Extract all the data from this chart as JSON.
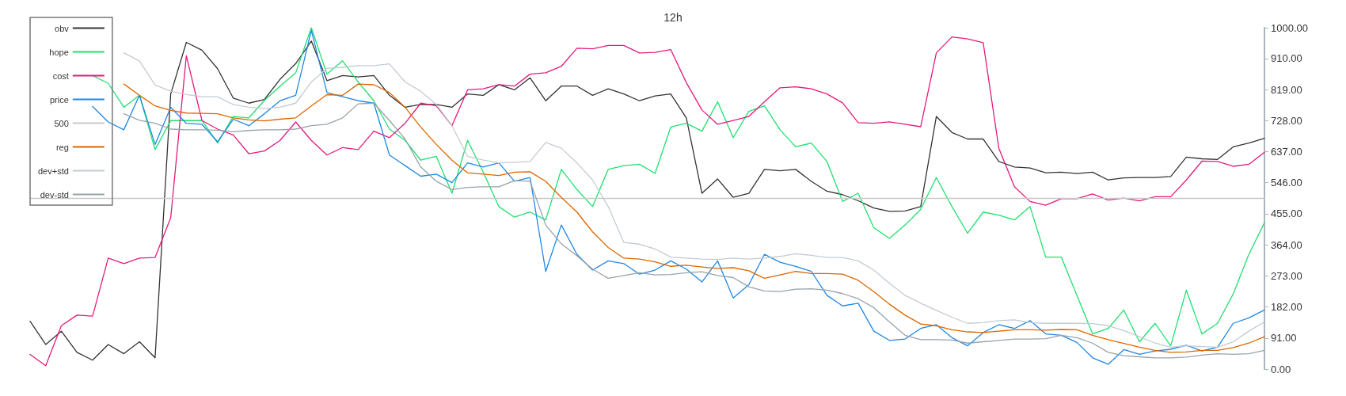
{
  "chart_data": {
    "type": "line",
    "title": "12h",
    "categories": [
      null,
      null,
      null,
      null,
      null,
      null,
      null,
      null,
      null,
      null,
      null,
      null,
      null,
      null,
      null,
      null,
      null,
      null,
      null,
      null,
      null,
      null,
      null,
      null,
      null,
      null,
      null,
      null,
      null,
      null,
      null,
      null,
      null,
      null,
      null,
      null,
      null,
      null,
      null,
      null,
      null,
      null,
      null,
      null,
      null,
      null,
      null,
      null,
      null,
      null,
      null,
      null,
      null,
      null,
      null,
      null,
      null,
      null,
      null,
      null,
      null,
      null,
      null,
      null,
      null,
      null,
      null,
      null,
      null,
      null,
      null,
      null,
      null,
      null,
      null,
      null,
      null,
      null,
      null,
      null
    ],
    "series": [
      {
        "name": "obv",
        "color": "#333333",
        "values": [
          140,
          72,
          111,
          49,
          26,
          72,
          45,
          80,
          33,
          806,
          957,
          934,
          880,
          794,
          779,
          790,
          849,
          895,
          961,
          845,
          860,
          856,
          860,
          802,
          767,
          775,
          775,
          767,
          806,
          802,
          833,
          818,
          853,
          786,
          829,
          829,
          802,
          821,
          806,
          786,
          800,
          806,
          736,
          515,
          557,
          503,
          515,
          585,
          581,
          585,
          550,
          521,
          511,
          493,
          472,
          462,
          463,
          476,
          740,
          693,
          674,
          674,
          608,
          592,
          589,
          575,
          577,
          573,
          577,
          554,
          560,
          561,
          561,
          564,
          621,
          616,
          614,
          651,
          662,
          676
        ]
      },
      {
        "name": "hope",
        "color": "#1ee070",
        "values": [
          null,
          null,
          null,
          null,
          860,
          837,
          767,
          802,
          643,
          728,
          728,
          728,
          662,
          740,
          736,
          787,
          829,
          868,
          1000,
          864,
          903,
          841,
          786,
          703,
          670,
          612,
          623,
          515,
          670,
          577,
          476,
          445,
          460,
          437,
          585,
          526,
          476,
          585,
          596,
          600,
          573,
          709,
          720,
          697,
          783,
          678,
          755,
          771,
          701,
          651,
          662,
          608,
          491,
          515,
          414,
          383,
          422,
          468,
          561,
          476,
          398,
          460,
          451,
          437,
          476,
          328,
          328,
          216,
          103,
          119,
          173,
          80,
          134,
          68,
          231,
          103,
          134,
          220,
          336,
          429
        ]
      },
      {
        "name": "cost",
        "color": "#e6197d",
        "values": [
          43,
          10,
          127,
          158,
          155,
          325,
          309,
          325,
          327,
          443,
          918,
          728,
          703,
          686,
          631,
          639,
          670,
          724,
          670,
          627,
          649,
          643,
          697,
          678,
          720,
          779,
          771,
          713,
          818,
          821,
          833,
          829,
          864,
          868,
          887,
          940,
          938,
          948,
          948,
          926,
          928,
          936,
          839,
          759,
          717,
          728,
          740,
          783,
          824,
          827,
          821,
          806,
          780,
          722,
          720,
          724,
          717,
          710,
          926,
          973,
          967,
          956,
          647,
          534,
          491,
          480,
          499,
          499,
          513,
          495,
          501,
          493,
          505,
          505,
          554,
          609,
          608,
          594,
          600,
          635
        ]
      },
      {
        "name": "price",
        "color": "#1e88e5",
        "values": [
          null,
          null,
          null,
          null,
          769,
          724,
          701,
          802,
          658,
          767,
          720,
          717,
          666,
          732,
          713,
          748,
          786,
          802,
          992,
          810,
          798,
          786,
          779,
          627,
          596,
          565,
          571,
          546,
          604,
          592,
          604,
          550,
          561,
          286,
          422,
          336,
          290,
          317,
          309,
          278,
          290,
          317,
          293,
          255,
          317,
          208,
          247,
          336,
          313,
          301,
          286,
          216,
          185,
          193,
          111,
          84,
          88,
          119,
          130,
          92,
          68,
          107,
          130,
          119,
          142,
          103,
          99,
          78,
          33,
          14,
          57,
          43,
          53,
          58,
          70,
          53,
          64,
          134,
          150,
          173
        ]
      },
      {
        "name": "500",
        "color": "#c8c8c8",
        "values": [
          500,
          500,
          500,
          500,
          500,
          500,
          500,
          500,
          500,
          500,
          500,
          500,
          500,
          500,
          500,
          500,
          500,
          500,
          500,
          500,
          500,
          500,
          500,
          500,
          500,
          500,
          500,
          500,
          500,
          500,
          500,
          500,
          500,
          500,
          500,
          500,
          500,
          500,
          500,
          500,
          500,
          500,
          500,
          500,
          500,
          500,
          500,
          500,
          500,
          500,
          500,
          500,
          500,
          500,
          500,
          500,
          500,
          500,
          500,
          500,
          500,
          500,
          500,
          500,
          500,
          500,
          500,
          500,
          500,
          500,
          500,
          500,
          500,
          500,
          500,
          500,
          500,
          500,
          500,
          500
        ]
      },
      {
        "name": "reg",
        "color": "#dd6600",
        "values": [
          null,
          null,
          null,
          null,
          null,
          null,
          835,
          802,
          771,
          758,
          750,
          749,
          748,
          736,
          730,
          727,
          732,
          736,
          771,
          804,
          802,
          835,
          833,
          810,
          767,
          709,
          658,
          612,
          575,
          571,
          567,
          577,
          578,
          550,
          503,
          460,
          402,
          356,
          325,
          322,
          314,
          301,
          304,
          299,
          295,
          297,
          288,
          266,
          276,
          286,
          280,
          280,
          278,
          260,
          227,
          190,
          158,
          132,
          127,
          115,
          109,
          107,
          111,
          115,
          115,
          114,
          116,
          115,
          99,
          86,
          75,
          64,
          55,
          49,
          50,
          55,
          55,
          63,
          76,
          95
        ]
      },
      {
        "name": "dev+std",
        "color": "#c4cbd2",
        "values": [
          null,
          null,
          null,
          null,
          null,
          null,
          926,
          903,
          832,
          814,
          804,
          798,
          798,
          775,
          767,
          763,
          767,
          779,
          841,
          881,
          884,
          889,
          889,
          894,
          841,
          814,
          775,
          713,
          623,
          612,
          604,
          606,
          608,
          664,
          647,
          604,
          554,
          476,
          371,
          366,
          352,
          328,
          325,
          322,
          321,
          325,
          322,
          325,
          330,
          338,
          333,
          327,
          327,
          317,
          290,
          251,
          216,
          193,
          172,
          152,
          134,
          136,
          142,
          144,
          136,
          134,
          134,
          134,
          133,
          127,
          113,
          95,
          76,
          64,
          68,
          66,
          64,
          80,
          111,
          138
        ]
      },
      {
        "name": "dev-std",
        "color": "#98a3ab",
        "values": [
          null,
          null,
          null,
          null,
          null,
          null,
          748,
          729,
          720,
          703,
          701,
          701,
          700,
          695,
          699,
          701,
          701,
          703,
          713,
          717,
          736,
          777,
          779,
          728,
          674,
          592,
          550,
          526,
          532,
          534,
          534,
          552,
          550,
          422,
          367,
          332,
          293,
          266,
          274,
          282,
          276,
          277,
          282,
          285,
          274,
          268,
          241,
          229,
          227,
          234,
          235,
          231,
          221,
          206,
          180,
          138,
          99,
          86,
          86,
          85,
          76,
          80,
          84,
          88,
          88,
          89,
          99,
          92,
          76,
          49,
          39,
          36,
          33,
          33,
          35,
          41,
          45,
          43,
          45,
          55
        ]
      }
    ],
    "ylim": [
      0,
      1000
    ],
    "yticks": [
      {
        "value": 0,
        "label": "0.00"
      },
      {
        "value": 91,
        "label": "91.00"
      },
      {
        "value": 182,
        "label": "182.00"
      },
      {
        "value": 273,
        "label": "273.00"
      },
      {
        "value": 364,
        "label": "364.00"
      },
      {
        "value": 455,
        "label": "455.00"
      },
      {
        "value": 546,
        "label": "546.00"
      },
      {
        "value": 637,
        "label": "637.00"
      },
      {
        "value": 728,
        "label": "728.00"
      },
      {
        "value": 819,
        "label": "819.00"
      },
      {
        "value": 910,
        "label": "910.00"
      },
      {
        "value": 1000,
        "label": "1000.00"
      }
    ],
    "tick_labels": "y",
    "grid": false,
    "legend": "top left",
    "marker": "none",
    "line_style": "solid"
  }
}
